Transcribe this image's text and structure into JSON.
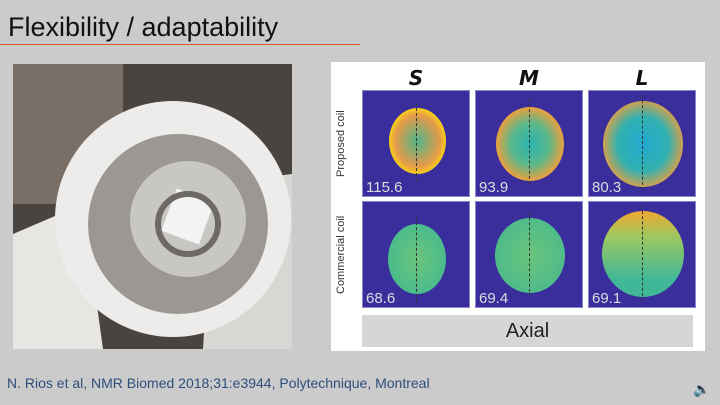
{
  "slide": {
    "title": "Flexibility / adaptability",
    "citation": "N. Rios et al, NMR Biomed 2018;31:e3944, Polytechnique, Montreal"
  },
  "photo": {
    "description_icon": "coil-photo"
  },
  "figure": {
    "columns": [
      "S",
      "M",
      "L"
    ],
    "rows": [
      "Proposed coil",
      "Commercial coil"
    ],
    "values": [
      [
        "115.6",
        "93.9",
        "80.3"
      ],
      [
        "68.6",
        "69.4",
        "69.1"
      ]
    ],
    "footer": "Axial"
  },
  "controls": {
    "audio_icon": "speaker-icon"
  }
}
